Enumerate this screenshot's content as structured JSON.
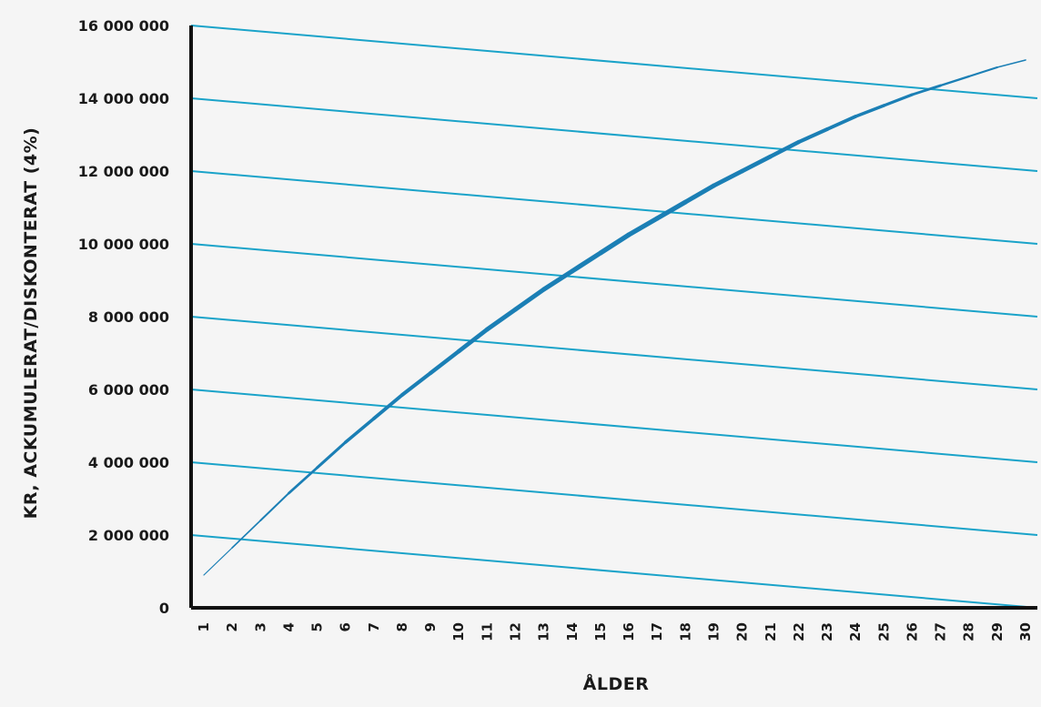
{
  "chart_data": {
    "type": "line",
    "xlabel": "ÅLDER",
    "ylabel": "KR, ACKUMULERAT/DISKONTERAT (4%)",
    "x_categories": [
      "1",
      "2",
      "3",
      "4",
      "5",
      "6",
      "7",
      "8",
      "9",
      "10",
      "11",
      "12",
      "13",
      "14",
      "15",
      "16",
      "17",
      "18",
      "19",
      "20",
      "21",
      "22",
      "23",
      "24",
      "25",
      "26",
      "27",
      "28",
      "29",
      "30"
    ],
    "y_ticks": [
      0,
      2000000,
      4000000,
      6000000,
      8000000,
      10000000,
      12000000,
      14000000,
      16000000
    ],
    "y_tick_labels": [
      "0",
      "2 000 000",
      "4 000 000",
      "6 000 000",
      "8 000 000",
      "10 000 000",
      "12 000 000",
      "14 000 000",
      "16 000 000"
    ],
    "ylim": [
      0,
      16000000
    ],
    "colors": {
      "curve": "#1b7fb5",
      "guides": "#1aa3c9",
      "axis": "#111111"
    },
    "series": [
      {
        "type": "curve",
        "x": [
          1,
          2,
          3,
          4,
          5,
          6,
          7,
          8,
          9,
          10,
          11,
          12,
          13,
          14,
          15,
          16,
          17,
          18,
          19,
          20,
          21,
          22,
          23,
          24,
          25,
          26,
          27,
          28,
          29,
          30
        ],
        "y": [
          900000,
          1650000,
          2400000,
          3150000,
          3850000,
          4550000,
          5200000,
          5850000,
          6450000,
          7050000,
          7650000,
          8200000,
          8750000,
          9250000,
          9750000,
          10250000,
          10700000,
          11150000,
          11600000,
          12000000,
          12400000,
          12800000,
          13150000,
          13500000,
          13800000,
          14100000,
          14350000,
          14600000,
          14850000,
          15050000
        ]
      }
    ],
    "guide_lines": [
      {
        "start": 2000000,
        "end": 0
      },
      {
        "start": 4000000,
        "end": 2000000
      },
      {
        "start": 6000000,
        "end": 4000000
      },
      {
        "start": 8000000,
        "end": 6000000
      },
      {
        "start": 10000000,
        "end": 8000000
      },
      {
        "start": 12000000,
        "end": 10000000
      },
      {
        "start": 14000000,
        "end": 12000000
      },
      {
        "start": 16000000,
        "end": 14000000
      }
    ],
    "grid": false,
    "legend": "none"
  }
}
